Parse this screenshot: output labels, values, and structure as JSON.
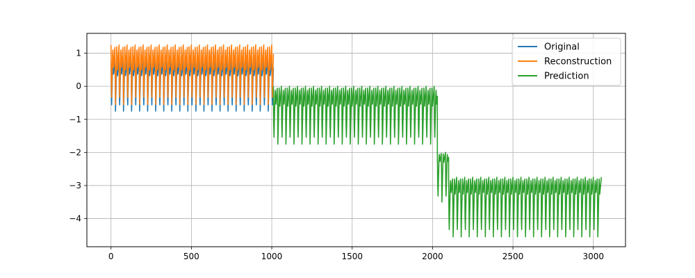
{
  "chart_data": {
    "type": "line",
    "title": "",
    "xlabel": "",
    "ylabel": "",
    "xlim": [
      -150,
      3200
    ],
    "ylim": [
      -4.85,
      1.6
    ],
    "grid": true,
    "legend_position": "top-right",
    "x_ticks": [
      0,
      500,
      1000,
      1500,
      2000,
      2500,
      3000
    ],
    "y_ticks": [
      1,
      0,
      -1,
      -2,
      -3,
      -4
    ],
    "x_tick_labels": [
      "0",
      "500",
      "1000",
      "1500",
      "2000",
      "2500",
      "3000"
    ],
    "y_tick_labels": [
      "1",
      "0",
      "−1",
      "−2",
      "−3",
      "−4"
    ],
    "series": [
      {
        "name": "Original",
        "color": "#1f77b4",
        "x_start": 0,
        "x_end": 1010,
        "segments": [
          {
            "from": 0,
            "to": 1010,
            "base": 0.0,
            "amp_high": 0.8,
            "amp_low": -0.75,
            "period": 25
          }
        ]
      },
      {
        "name": "Reconstruction",
        "color": "#ff7f0e",
        "x_start": 0,
        "x_end": 1010,
        "segments": [
          {
            "from": 0,
            "to": 1010,
            "base": 0.0,
            "amp_high": 1.25,
            "amp_low": -0.55,
            "period": 25
          }
        ]
      },
      {
        "name": "Prediction",
        "color": "#2ca02c",
        "x_start": 1010,
        "x_end": 3050,
        "segments": [
          {
            "from": 1010,
            "to": 2030,
            "base": -1.0,
            "amp_high": 0.0,
            "amp_low": -1.75,
            "period": 25
          },
          {
            "from": 2030,
            "to": 2100,
            "base": -2.5,
            "amp_high": -2.0,
            "amp_low": -3.5,
            "period": 25
          },
          {
            "from": 2100,
            "to": 3050,
            "base": -3.6,
            "amp_high": -2.75,
            "amp_low": -4.55,
            "period": 25
          }
        ]
      }
    ]
  }
}
